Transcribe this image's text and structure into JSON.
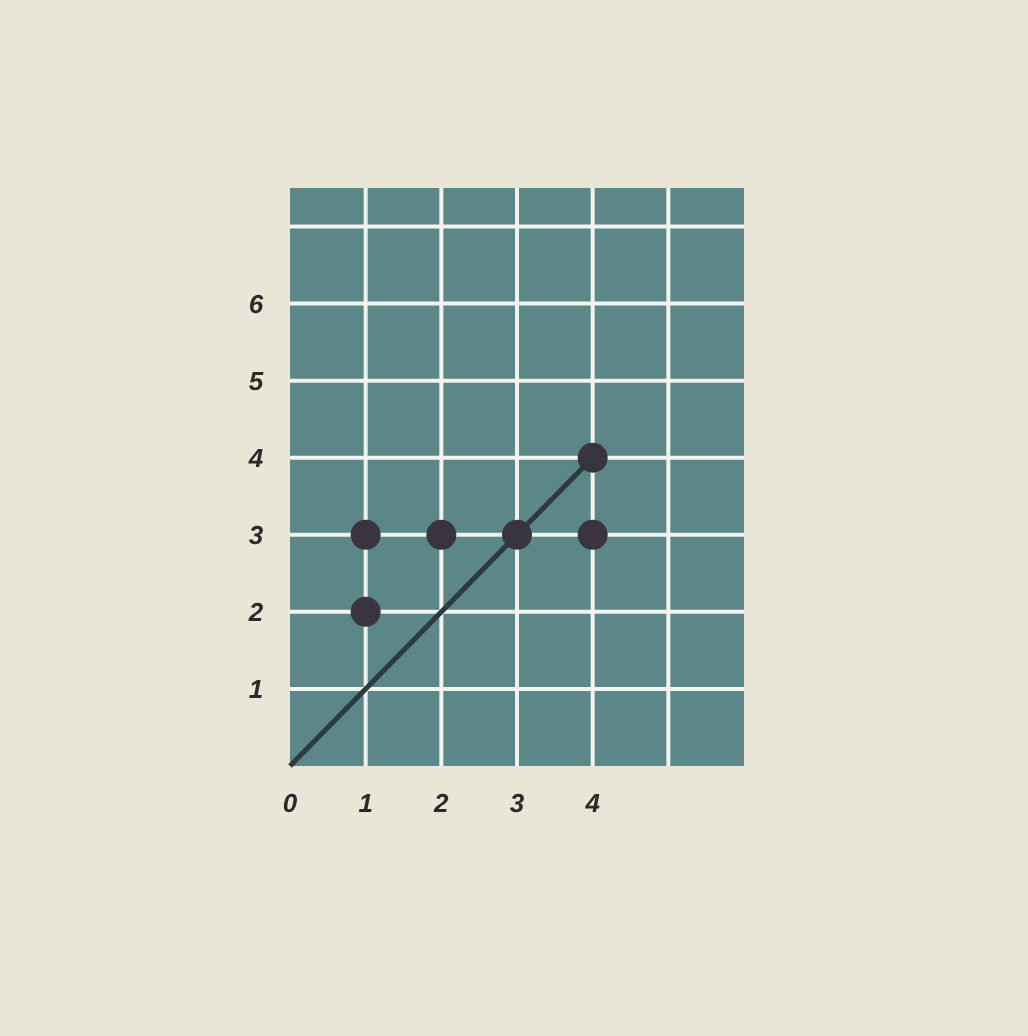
{
  "chart_data": {
    "type": "scatter",
    "xlim": [
      0,
      6
    ],
    "ylim": [
      0,
      7.5
    ],
    "xticks": [
      0,
      1,
      2,
      3,
      4
    ],
    "yticks": [
      1,
      2,
      3,
      4,
      5,
      6
    ],
    "grid": true,
    "series": [
      {
        "color": "#3a3440",
        "marker": "circle",
        "x": [
          1,
          1,
          2,
          3,
          4,
          4
        ],
        "values": [
          2,
          3,
          3,
          3,
          3,
          4
        ]
      },
      {
        "type": "line",
        "color": "#2e3a40",
        "x": [
          0,
          4
        ],
        "values": [
          0,
          4
        ],
        "marker": "none",
        "line_style": "solid"
      }
    ]
  }
}
